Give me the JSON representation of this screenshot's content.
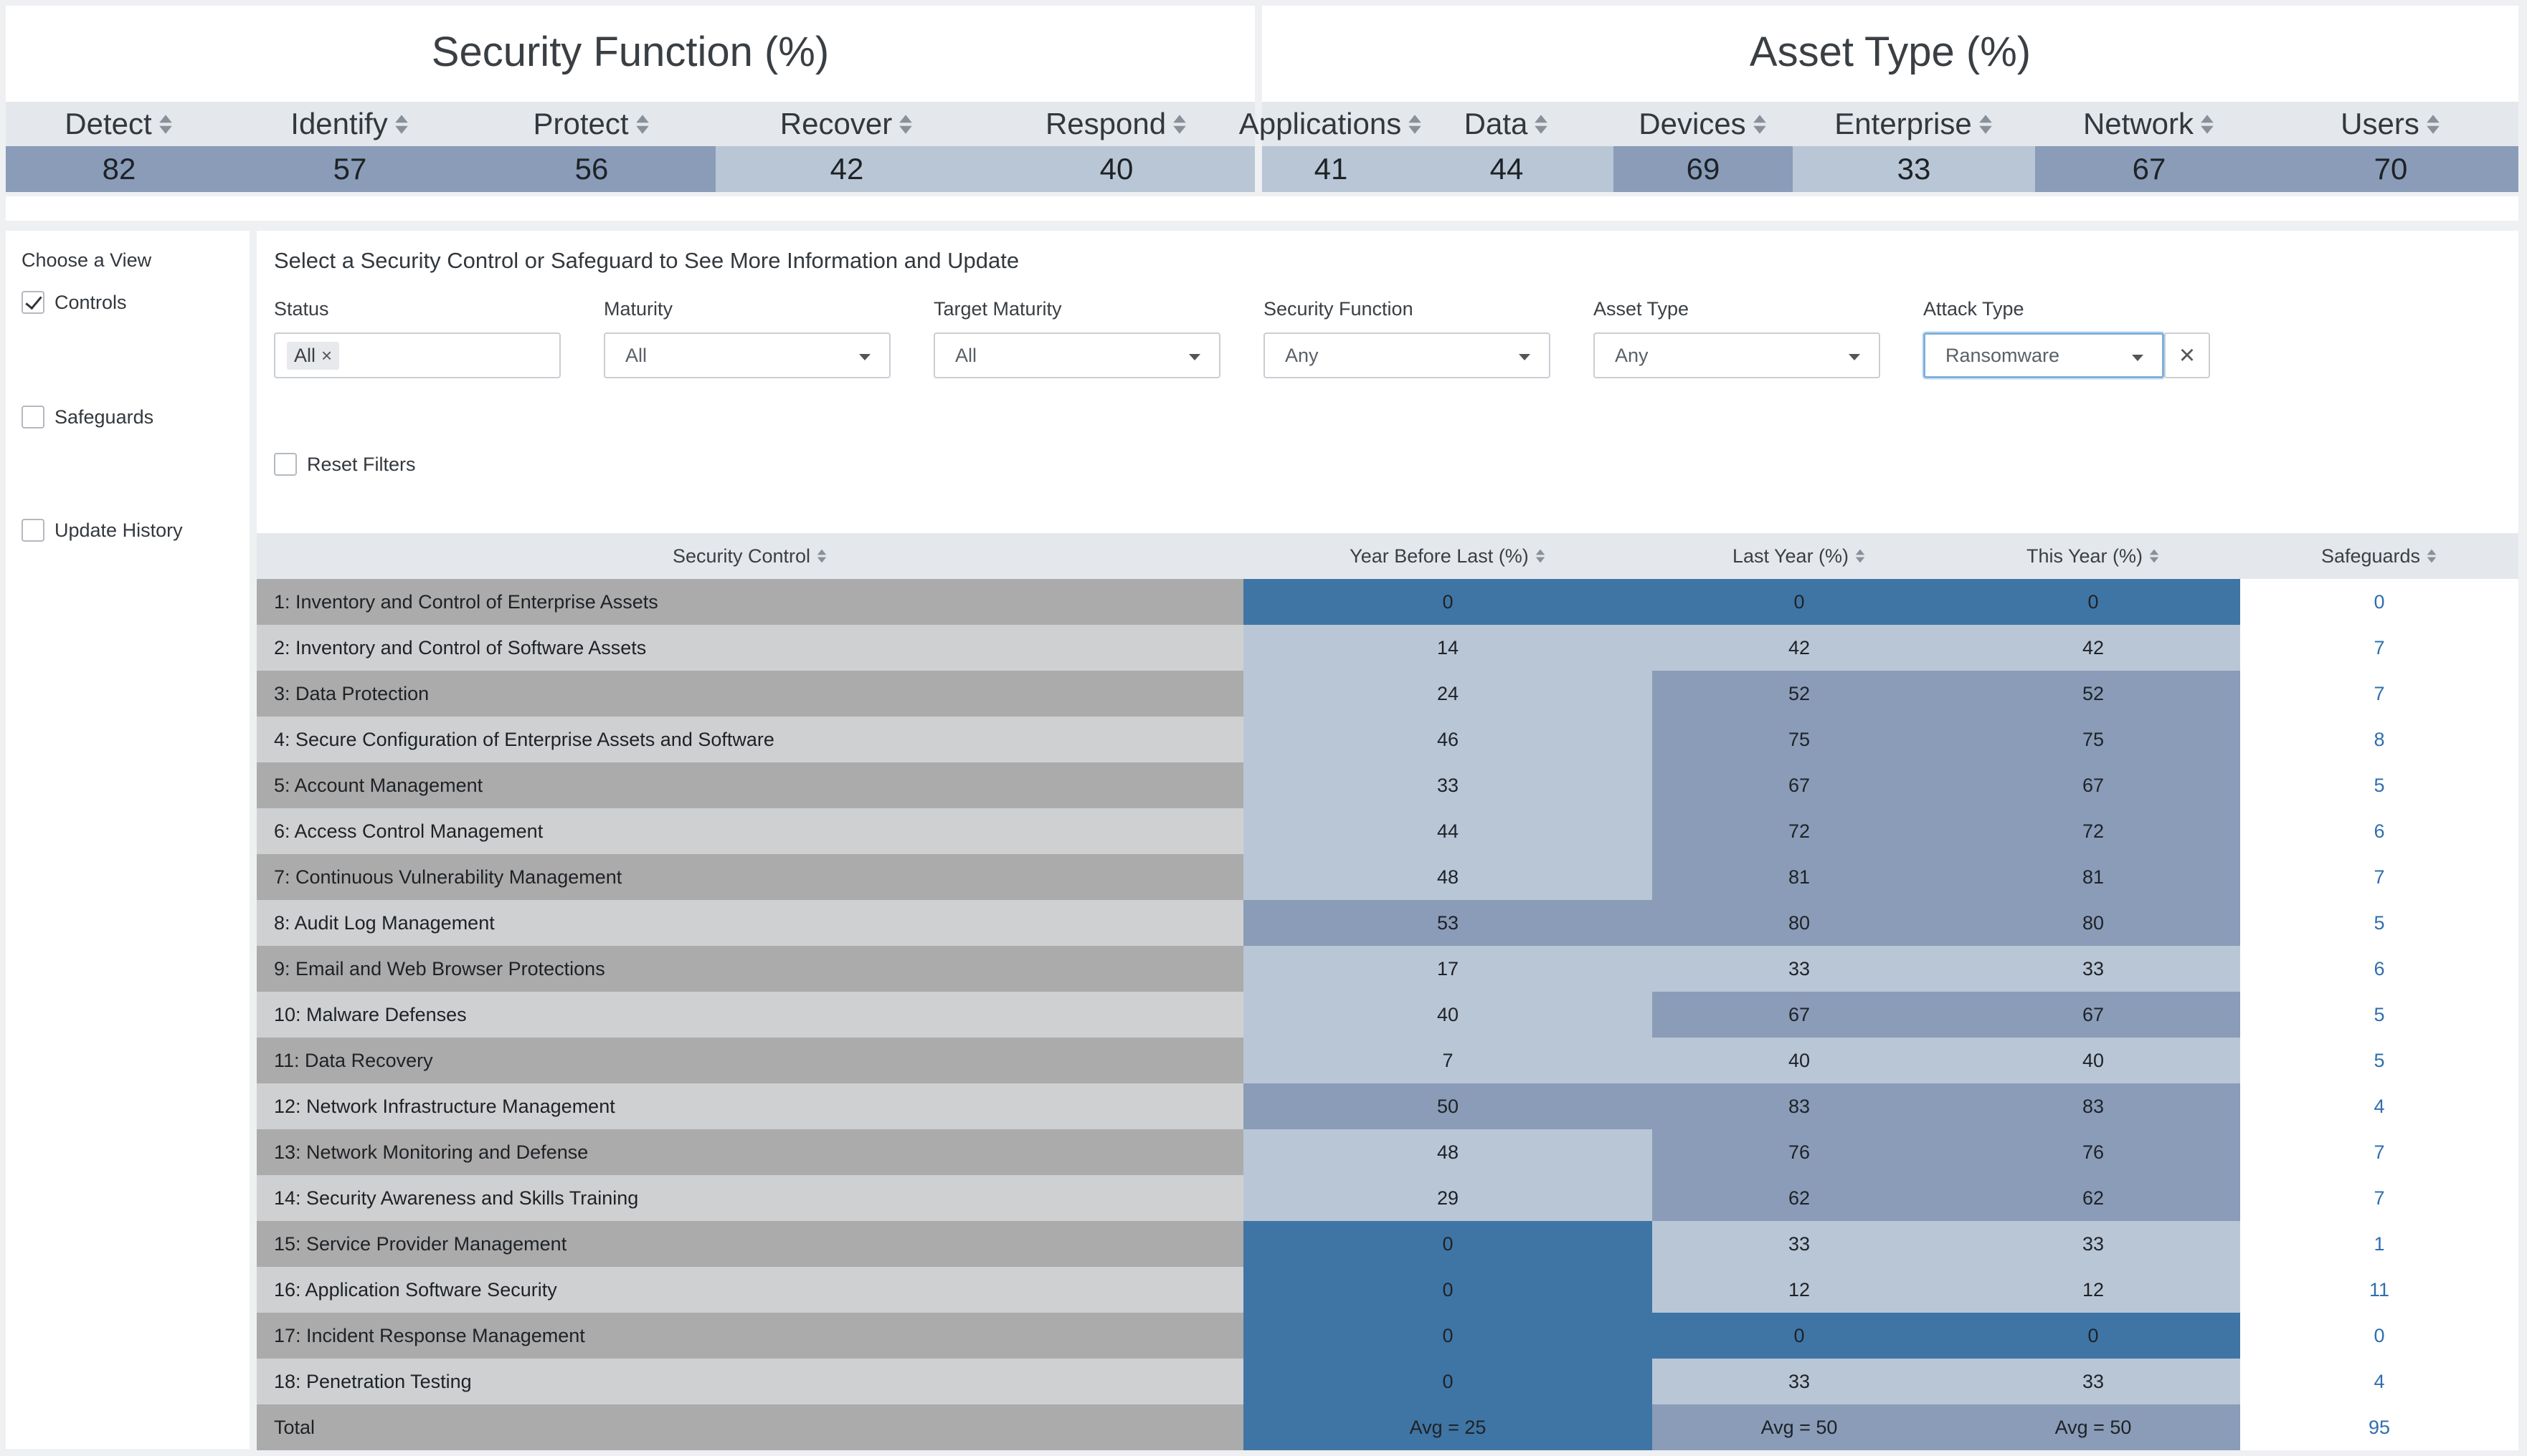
{
  "security_function": {
    "title": "Security Function (%)",
    "columns": [
      {
        "label": "Detect",
        "value": "82",
        "level": "dark"
      },
      {
        "label": "Identify",
        "value": "57",
        "level": "dark"
      },
      {
        "label": "Protect",
        "value": "56",
        "level": "dark"
      },
      {
        "label": "Recover",
        "value": "42",
        "level": "light"
      },
      {
        "label": "Respond",
        "value": "40",
        "level": "light"
      }
    ]
  },
  "asset_type": {
    "title": "Asset Type (%)",
    "columns": [
      {
        "label": "Applications",
        "value": "41",
        "level": "light"
      },
      {
        "label": "Data",
        "value": "44",
        "level": "light"
      },
      {
        "label": "Devices",
        "value": "69",
        "level": "dark"
      },
      {
        "label": "Enterprise",
        "value": "33",
        "level": "light"
      },
      {
        "label": "Network",
        "value": "67",
        "level": "dark"
      },
      {
        "label": "Users",
        "value": "70",
        "level": "dark"
      }
    ]
  },
  "view": {
    "title": "Choose a View",
    "options": [
      {
        "label": "Controls",
        "checked": true
      },
      {
        "label": "Safeguards",
        "checked": false
      },
      {
        "label": "Update History",
        "checked": false
      }
    ]
  },
  "filters": {
    "title": "Select a Security Control or Safeguard to See More Information and Update",
    "status": {
      "label": "Status",
      "chip": "All",
      "chip_remove": "×"
    },
    "maturity": {
      "label": "Maturity",
      "value": "All"
    },
    "target_maturity": {
      "label": "Target Maturity",
      "value": "All"
    },
    "security_function": {
      "label": "Security Function",
      "value": "Any"
    },
    "asset_type": {
      "label": "Asset Type",
      "value": "Any"
    },
    "attack_type": {
      "label": "Attack Type",
      "value": "Ransomware"
    },
    "clear": "×",
    "reset_label": "Reset Filters"
  },
  "table": {
    "headers": [
      "Security Control",
      "Year Before Last (%)",
      "Last Year (%)",
      "This Year (%)",
      "Safeguards"
    ],
    "rows": [
      {
        "name": "1: Inventory and Control of Enterprise Assets",
        "ybl": "0",
        "ly": "0",
        "ty": "0",
        "sg": "0",
        "c1": "blue",
        "c2": "blue",
        "c3": "blue"
      },
      {
        "name": "2: Inventory and Control of Software Assets",
        "ybl": "14",
        "ly": "42",
        "ty": "42",
        "sg": "7",
        "c1": "light",
        "c2": "light",
        "c3": "light"
      },
      {
        "name": "3: Data Protection",
        "ybl": "24",
        "ly": "52",
        "ty": "52",
        "sg": "7",
        "c1": "light",
        "c2": "dark",
        "c3": "dark"
      },
      {
        "name": "4: Secure Configuration of Enterprise Assets and Software",
        "ybl": "46",
        "ly": "75",
        "ty": "75",
        "sg": "8",
        "c1": "light",
        "c2": "dark",
        "c3": "dark"
      },
      {
        "name": "5: Account Management",
        "ybl": "33",
        "ly": "67",
        "ty": "67",
        "sg": "5",
        "c1": "light",
        "c2": "dark",
        "c3": "dark"
      },
      {
        "name": "6: Access Control Management",
        "ybl": "44",
        "ly": "72",
        "ty": "72",
        "sg": "6",
        "c1": "light",
        "c2": "dark",
        "c3": "dark"
      },
      {
        "name": "7: Continuous Vulnerability Management",
        "ybl": "48",
        "ly": "81",
        "ty": "81",
        "sg": "7",
        "c1": "light",
        "c2": "dark",
        "c3": "dark"
      },
      {
        "name": "8: Audit Log Management",
        "ybl": "53",
        "ly": "80",
        "ty": "80",
        "sg": "5",
        "c1": "dark",
        "c2": "dark",
        "c3": "dark"
      },
      {
        "name": "9: Email and Web Browser Protections",
        "ybl": "17",
        "ly": "33",
        "ty": "33",
        "sg": "6",
        "c1": "light",
        "c2": "light",
        "c3": "light"
      },
      {
        "name": "10: Malware Defenses",
        "ybl": "40",
        "ly": "67",
        "ty": "67",
        "sg": "5",
        "c1": "light",
        "c2": "dark",
        "c3": "dark"
      },
      {
        "name": "11: Data Recovery",
        "ybl": "7",
        "ly": "40",
        "ty": "40",
        "sg": "5",
        "c1": "light",
        "c2": "light",
        "c3": "light"
      },
      {
        "name": "12: Network Infrastructure Management",
        "ybl": "50",
        "ly": "83",
        "ty": "83",
        "sg": "4",
        "c1": "dark",
        "c2": "dark",
        "c3": "dark"
      },
      {
        "name": "13: Network Monitoring and Defense",
        "ybl": "48",
        "ly": "76",
        "ty": "76",
        "sg": "7",
        "c1": "light",
        "c2": "dark",
        "c3": "dark"
      },
      {
        "name": "14: Security Awareness and Skills Training",
        "ybl": "29",
        "ly": "62",
        "ty": "62",
        "sg": "7",
        "c1": "light",
        "c2": "dark",
        "c3": "dark"
      },
      {
        "name": "15: Service Provider Management",
        "ybl": "0",
        "ly": "33",
        "ty": "33",
        "sg": "1",
        "c1": "blue",
        "c2": "light",
        "c3": "light"
      },
      {
        "name": "16: Application Software Security",
        "ybl": "0",
        "ly": "12",
        "ty": "12",
        "sg": "11",
        "c1": "blue",
        "c2": "light",
        "c3": "light"
      },
      {
        "name": "17: Incident Response Management",
        "ybl": "0",
        "ly": "0",
        "ty": "0",
        "sg": "0",
        "c1": "blue",
        "c2": "blue",
        "c3": "blue"
      },
      {
        "name": "18: Penetration Testing",
        "ybl": "0",
        "ly": "33",
        "ty": "33",
        "sg": "4",
        "c1": "blue",
        "c2": "light",
        "c3": "light"
      }
    ],
    "total": {
      "name": "Total",
      "ybl": "Avg = 25",
      "ly": "Avg = 50",
      "ty": "Avg = 50",
      "sg": "95",
      "c1": "blue",
      "c2": "dark",
      "c3": "dark"
    }
  }
}
